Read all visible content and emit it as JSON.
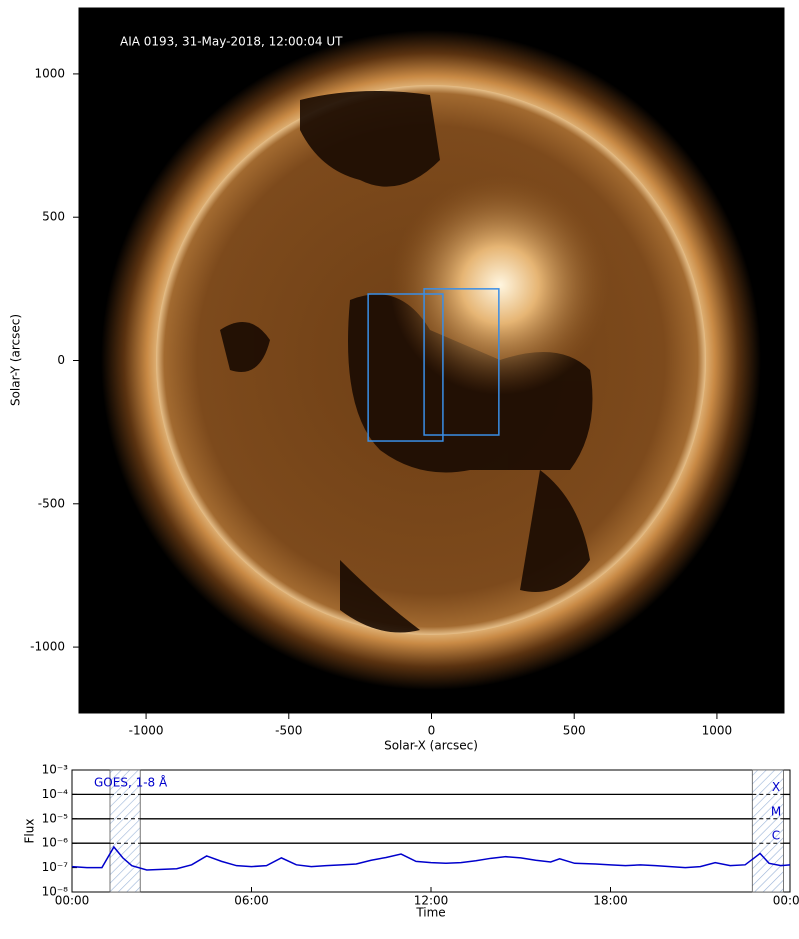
{
  "chart_data": [
    {
      "type": "image",
      "title": "AIA 0193, 31-May-2018, 12:00:04 UT",
      "xlabel": "Solar-X (arcsec)",
      "ylabel": "Solar-Y (arcsec)",
      "xlim": [
        -1235,
        1235
      ],
      "ylim": [
        -1230,
        1230
      ],
      "xticks": [
        -1000,
        -500,
        0,
        500,
        1000
      ],
      "yticks": [
        -1000,
        -500,
        0,
        500,
        1000
      ],
      "box_color": "#3a8ee6",
      "boxes": [
        {
          "xlim": [
            -222,
            40
          ],
          "ylim": [
            -281,
            232
          ]
        },
        {
          "xlim": [
            -26,
            236
          ],
          "ylim": [
            -260,
            250
          ]
        }
      ]
    },
    {
      "type": "line",
      "xlabel": "Time",
      "ylabel": "Flux",
      "log_y": true,
      "legend": "upper left",
      "xlim": [
        0,
        24
      ],
      "xticks": [
        {
          "value": 0,
          "label": "00:00"
        },
        {
          "value": 6,
          "label": "06:00"
        },
        {
          "value": 12,
          "label": "12:00"
        },
        {
          "value": 18,
          "label": "18:00"
        },
        {
          "value": 24,
          "label": "00:00"
        }
      ],
      "ylim": [
        1e-08,
        0.001
      ],
      "yticks": [
        {
          "value": 1e-08,
          "label": "10⁻⁸"
        },
        {
          "value": 1e-07,
          "label": "10⁻⁷"
        },
        {
          "value": 1e-06,
          "label": "10⁻⁶"
        },
        {
          "value": 1e-05,
          "label": "10⁻⁵"
        },
        {
          "value": 0.0001,
          "label": "10⁻⁴"
        },
        {
          "value": 0.001,
          "label": "10⁻³"
        }
      ],
      "flare_levels": [
        {
          "value": 0.0001,
          "label": "X"
        },
        {
          "value": 1e-05,
          "label": "M"
        },
        {
          "value": 1e-06,
          "label": "C"
        }
      ],
      "shaded_spans": [
        [
          1.27,
          2.28
        ],
        [
          22.74,
          23.78
        ]
      ],
      "x": [
        0,
        0.5,
        1.0,
        1.4,
        1.7,
        2.0,
        2.5,
        3.0,
        3.5,
        4.0,
        4.5,
        5.0,
        5.5,
        6.0,
        6.5,
        7.0,
        7.5,
        8.0,
        8.5,
        9.0,
        9.5,
        10.0,
        10.5,
        11.0,
        11.5,
        12.0,
        12.5,
        13.0,
        13.5,
        14.0,
        14.5,
        15.0,
        15.5,
        16.0,
        16.3,
        16.8,
        17.5,
        18.0,
        18.5,
        19.0,
        19.5,
        20.0,
        20.5,
        21.0,
        21.5,
        22.0,
        22.5,
        23.0,
        23.3,
        23.7,
        24.0
      ],
      "series": [
        {
          "name": "GOES, 1-8 Å",
          "color": "#0000cc",
          "values": [
            1.1e-07,
            1e-07,
            1e-07,
            7e-07,
            2.5e-07,
            1.2e-07,
            8e-08,
            8.5e-08,
            9e-08,
            1.3e-07,
            3e-07,
            1.8e-07,
            1.2e-07,
            1.1e-07,
            1.2e-07,
            2.5e-07,
            1.3e-07,
            1.1e-07,
            1.2e-07,
            1.3e-07,
            1.4e-07,
            2e-07,
            2.6e-07,
            3.6e-07,
            1.8e-07,
            1.6e-07,
            1.5e-07,
            1.6e-07,
            1.9e-07,
            2.4e-07,
            2.8e-07,
            2.5e-07,
            2e-07,
            1.7e-07,
            2.3e-07,
            1.5e-07,
            1.4e-07,
            1.3e-07,
            1.2e-07,
            1.3e-07,
            1.2e-07,
            1.1e-07,
            1e-07,
            1.1e-07,
            1.6e-07,
            1.2e-07,
            1.3e-07,
            3.8e-07,
            1.5e-07,
            1.2e-07,
            1.3e-07
          ]
        }
      ]
    }
  ]
}
